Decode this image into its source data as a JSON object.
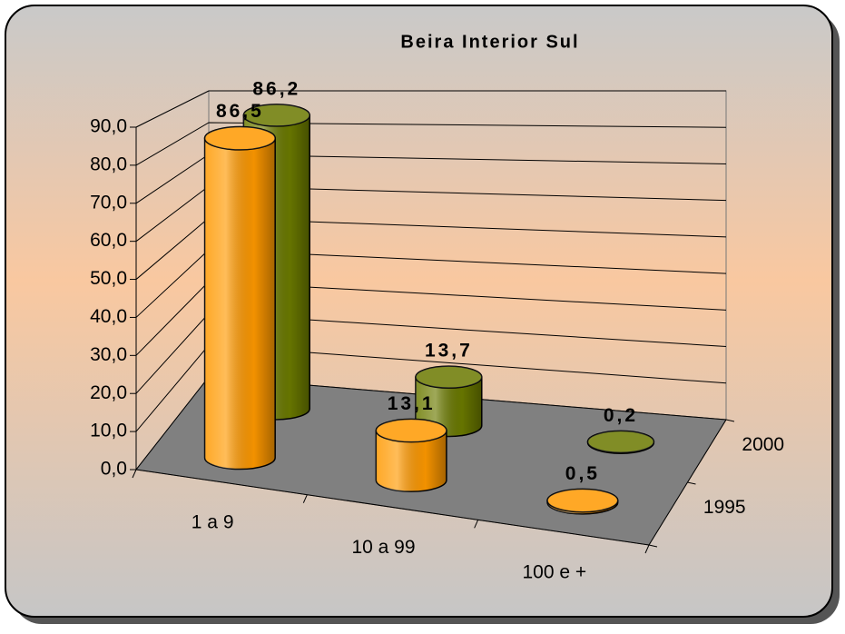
{
  "chart_data": {
    "type": "bar3d",
    "title": "Beira Interior Sul",
    "categories": [
      "1 a 9",
      "10 a 99",
      "100 e +"
    ],
    "series": [
      {
        "name": "1995",
        "color": "#ff9900",
        "values": [
          86.5,
          13.1,
          0.5
        ],
        "value_labels": [
          "86,5",
          "13,1",
          "0,5"
        ]
      },
      {
        "name": "2000",
        "color": "#6b7a00",
        "values": [
          86.2,
          13.7,
          0.2
        ],
        "value_labels": [
          "86,2",
          "13,7",
          "0,2"
        ]
      }
    ],
    "ylim": [
      0,
      90
    ],
    "yticks": [
      {
        "value": 0,
        "label": "0,0"
      },
      {
        "value": 10,
        "label": "10,0"
      },
      {
        "value": 20,
        "label": "20,0"
      },
      {
        "value": 30,
        "label": "30,0"
      },
      {
        "value": 40,
        "label": "40,0"
      },
      {
        "value": 50,
        "label": "50,0"
      },
      {
        "value": 60,
        "label": "60,0"
      },
      {
        "value": 70,
        "label": "70,0"
      },
      {
        "value": 80,
        "label": "80,0"
      },
      {
        "value": 90,
        "label": "90,0"
      }
    ],
    "grid": true,
    "floor_color": "#808080"
  }
}
